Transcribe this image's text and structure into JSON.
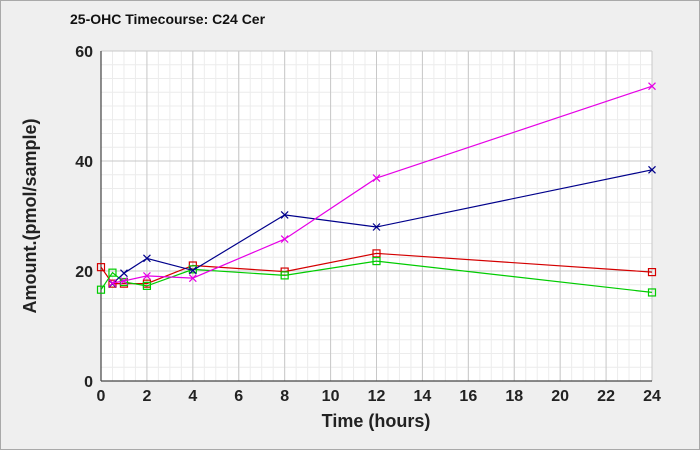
{
  "chart_data": {
    "type": "line",
    "title": "25-OHC Timecourse: C24 Cer",
    "xlabel": "Time (hours)",
    "ylabel": "Amount.(pmol/sample)",
    "xlim": [
      0,
      24
    ],
    "ylim": [
      0,
      60
    ],
    "x_ticks": [
      0,
      2,
      4,
      6,
      8,
      10,
      12,
      14,
      16,
      18,
      20,
      22,
      24
    ],
    "y_ticks": [
      0,
      20,
      40,
      60
    ],
    "grid": true,
    "legend": "none",
    "series": [
      {
        "color": "#d40000",
        "marker": "square",
        "x": [
          0,
          0.5,
          1,
          2,
          4,
          8,
          12,
          24
        ],
        "y": [
          20.7,
          17.7,
          17.7,
          17.7,
          21.0,
          19.9,
          23.2,
          19.8
        ]
      },
      {
        "color": "#00cc00",
        "marker": "square",
        "x": [
          0,
          0.5,
          1,
          2,
          4,
          8,
          12,
          24
        ],
        "y": [
          16.6,
          19.7,
          18.0,
          17.3,
          20.3,
          19.2,
          21.8,
          16.1
        ]
      },
      {
        "color": "#00008b",
        "marker": "x",
        "x": [
          0.5,
          1,
          2,
          4,
          8,
          12,
          24
        ],
        "y": [
          17.7,
          19.6,
          22.3,
          20.1,
          30.2,
          28.0,
          38.4
        ]
      },
      {
        "color": "#e600e6",
        "marker": "x",
        "x": [
          0.5,
          1,
          2,
          4,
          8,
          12,
          24
        ],
        "y": [
          17.8,
          18.2,
          19.1,
          18.7,
          25.8,
          36.9,
          53.6
        ]
      }
    ]
  }
}
